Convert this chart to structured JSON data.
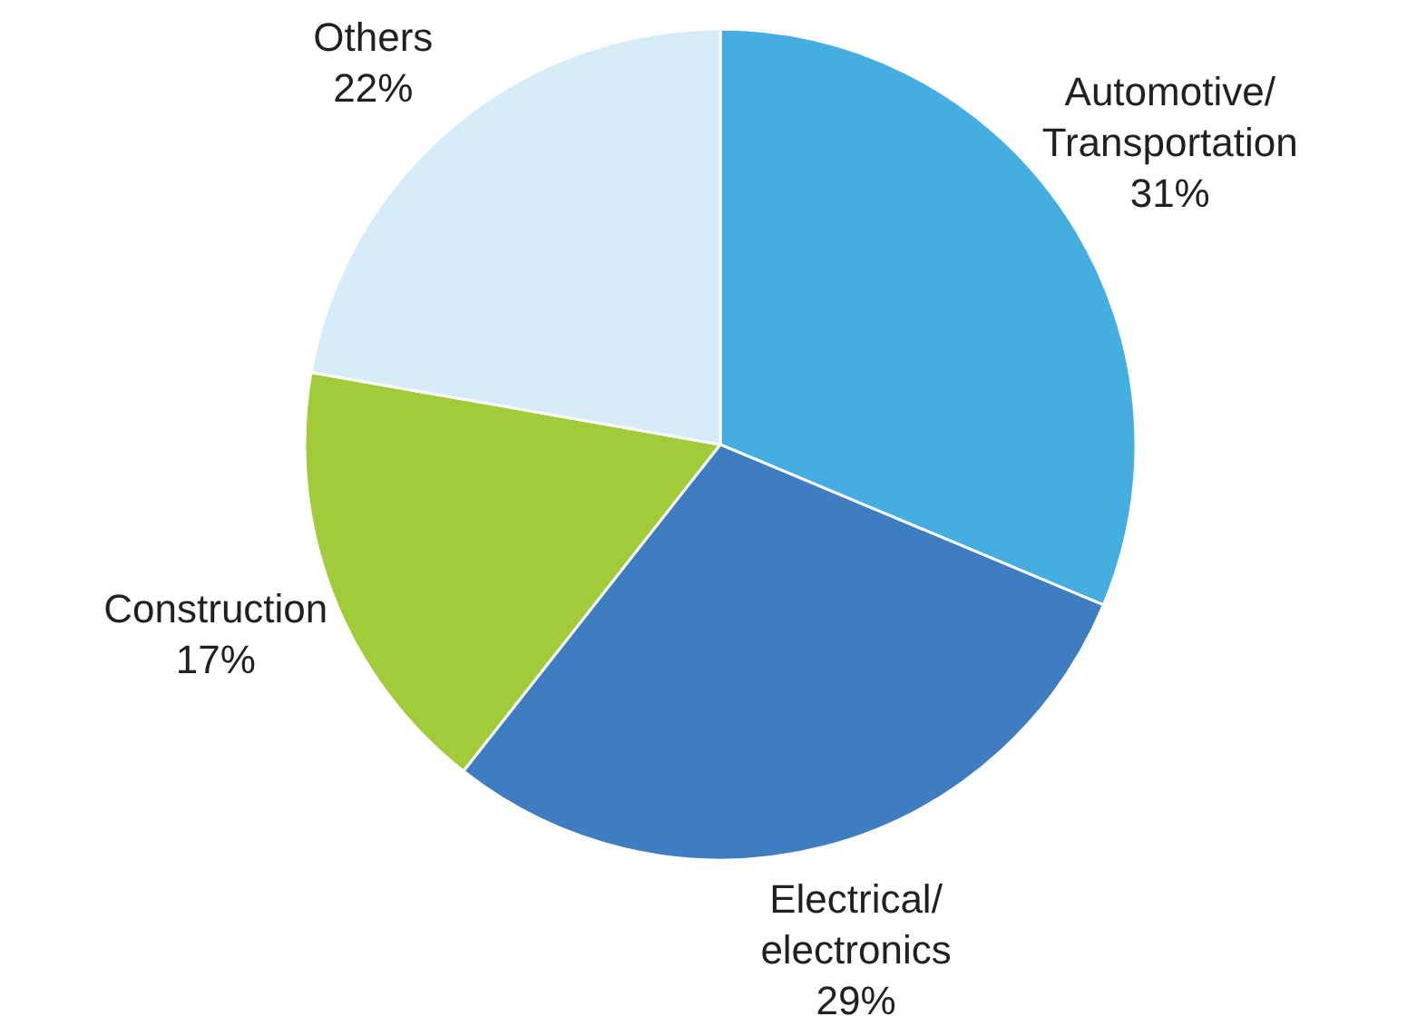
{
  "chart_data": {
    "type": "pie",
    "categories": [
      "Automotive/Transportation",
      "Electrical/electronics",
      "Construction",
      "Others"
    ],
    "values": [
      31,
      29,
      17,
      22
    ],
    "value_labels": [
      "31%",
      "29%",
      "17%",
      "22%"
    ],
    "colors": [
      "#45aee0",
      "#3f7dc1",
      "#a2cb3a",
      "#d6edf9"
    ]
  }
}
